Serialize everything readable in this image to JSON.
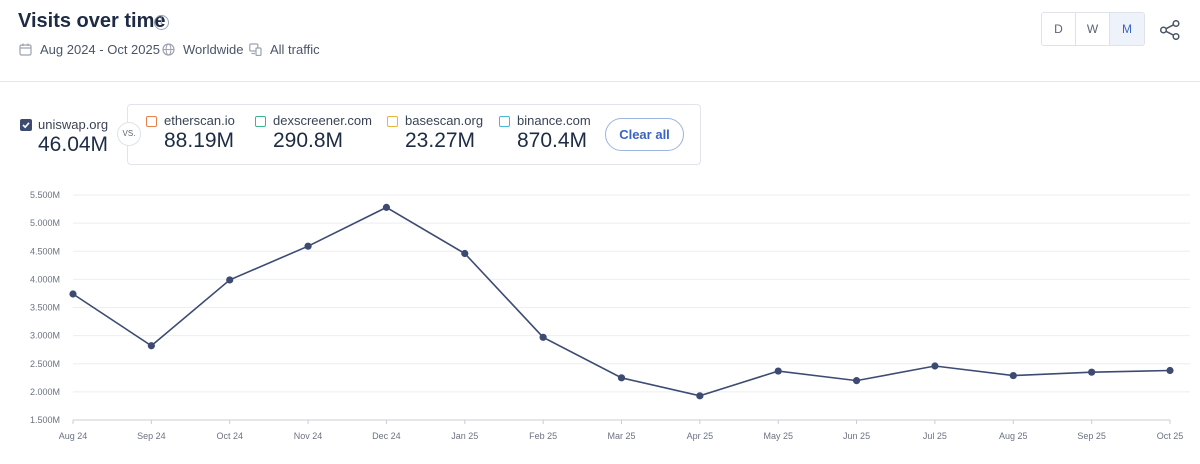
{
  "header": {
    "title": "Visits over time",
    "date_range": "Aug 2024 - Oct 2025",
    "region": "Worldwide",
    "traffic": "All traffic",
    "granularity": [
      "D",
      "W",
      "M"
    ],
    "granularity_selected": "M"
  },
  "legend": {
    "main": {
      "name": "uniswap.org",
      "value": "46.04M",
      "color": "#3d4b73"
    },
    "vs_label": "VS.",
    "comparisons": [
      {
        "name": "etherscan.io",
        "value": "88.19M",
        "color": "#e8804a"
      },
      {
        "name": "dexscreener.com",
        "value": "290.8M",
        "color": "#3fb58c"
      },
      {
        "name": "basescan.org",
        "value": "23.27M",
        "color": "#e3b63c"
      },
      {
        "name": "binance.com",
        "value": "870.4M",
        "color": "#4ab5d2"
      }
    ],
    "clear_label": "Clear all"
  },
  "chart_data": {
    "type": "line",
    "categories": [
      "Aug 24",
      "Sep 24",
      "Oct 24",
      "Nov 24",
      "Dec 24",
      "Jan 25",
      "Feb 25",
      "Mar 25",
      "Apr 25",
      "May 25",
      "Jun 25",
      "Jul 25",
      "Aug 25",
      "Sep 25",
      "Oct 25"
    ],
    "series": [
      {
        "name": "uniswap.org",
        "values": [
          3.74,
          2.82,
          3.99,
          4.59,
          5.28,
          4.46,
          2.97,
          2.25,
          1.93,
          2.37,
          2.2,
          2.46,
          2.29,
          2.35,
          2.38
        ]
      }
    ],
    "y_ticks": [
      "1.500M",
      "2.000M",
      "2.500M",
      "3.000M",
      "3.500M",
      "4.000M",
      "4.500M",
      "5.000M",
      "5.500M"
    ],
    "ylim": [
      1.5,
      5.5
    ],
    "y_unit": "M",
    "grid": true,
    "line_color": "#3d4b73"
  }
}
